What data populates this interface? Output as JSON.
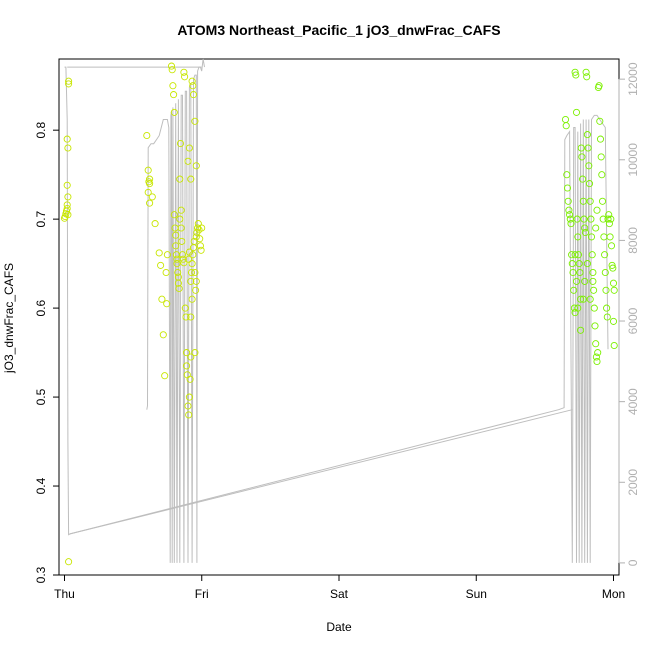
{
  "chart_data": {
    "type": "scatter",
    "title": "ATOM3 Northeast_Pacific_1 jO3_dnwFrac_CAFS",
    "xlabel": "Date",
    "ylabel": "jO3_dnwFrac_CAFS",
    "x_tick_labels": [
      "Thu",
      "Fri",
      "Sat",
      "Sun",
      "Mon"
    ],
    "x_tick_values": [
      0,
      1,
      2,
      3,
      4
    ],
    "xlim": [
      -0.04,
      4.04
    ],
    "ylim": [
      0.3,
      0.88
    ],
    "y_ticks": [
      0.3,
      0.4,
      0.5,
      0.6,
      0.7,
      0.8
    ],
    "y_tick_labels": [
      "0.3",
      "0.4",
      "0.5",
      "0.6",
      "0.7",
      "0.8"
    ],
    "y2lim": [
      -300,
      12500
    ],
    "y2_ticks": [
      0,
      2000,
      4000,
      6000,
      8000,
      10000,
      12000
    ],
    "y2_tick_labels": [
      "0",
      "2000",
      "4000",
      "6000",
      "8000",
      "10000",
      "12000"
    ],
    "colors": {
      "early": "#c8e600",
      "late": "#7cf000",
      "altitude_line": "#bebebe",
      "axis": "#000000",
      "right_axis": "#b0b0b0"
    },
    "series": [
      {
        "role": "points",
        "points": [
          [
            0.0,
            0.701
          ],
          [
            0.005,
            0.703
          ],
          [
            0.01,
            0.706
          ],
          [
            0.015,
            0.709
          ],
          [
            0.02,
            0.712
          ],
          [
            0.025,
            0.705
          ],
          [
            0.02,
            0.716
          ],
          [
            0.025,
            0.725
          ],
          [
            0.02,
            0.738
          ],
          [
            0.025,
            0.78
          ],
          [
            0.02,
            0.79
          ],
          [
            0.03,
            0.852
          ],
          [
            0.03,
            0.855
          ],
          [
            0.03,
            0.315
          ],
          [
            0.6,
            0.794
          ],
          [
            0.61,
            0.755
          ],
          [
            0.615,
            0.742
          ],
          [
            0.62,
            0.745
          ],
          [
            0.62,
            0.74
          ],
          [
            0.61,
            0.73
          ],
          [
            0.62,
            0.718
          ],
          [
            0.64,
            0.725
          ],
          [
            0.66,
            0.695
          ],
          [
            0.69,
            0.662
          ],
          [
            0.7,
            0.648
          ],
          [
            0.71,
            0.61
          ],
          [
            0.72,
            0.57
          ],
          [
            0.73,
            0.524
          ],
          [
            0.74,
            0.64
          ],
          [
            0.745,
            0.605
          ],
          [
            0.75,
            0.66
          ],
          [
            0.78,
            0.872
          ],
          [
            0.785,
            0.868
          ],
          [
            0.79,
            0.85
          ],
          [
            0.795,
            0.84
          ],
          [
            0.8,
            0.82
          ],
          [
            0.8,
            0.705
          ],
          [
            0.805,
            0.69
          ],
          [
            0.81,
            0.682
          ],
          [
            0.81,
            0.67
          ],
          [
            0.815,
            0.66
          ],
          [
            0.82,
            0.655
          ],
          [
            0.82,
            0.65
          ],
          [
            0.825,
            0.64
          ],
          [
            0.83,
            0.635
          ],
          [
            0.83,
            0.628
          ],
          [
            0.835,
            0.622
          ],
          [
            0.84,
            0.7
          ],
          [
            0.84,
            0.745
          ],
          [
            0.845,
            0.785
          ],
          [
            0.85,
            0.71
          ],
          [
            0.85,
            0.69
          ],
          [
            0.855,
            0.675
          ],
          [
            0.86,
            0.66
          ],
          [
            0.865,
            0.655
          ],
          [
            0.87,
            0.651
          ],
          [
            0.87,
            0.865
          ],
          [
            0.875,
            0.86
          ],
          [
            0.88,
            0.6
          ],
          [
            0.885,
            0.59
          ],
          [
            0.89,
            0.55
          ],
          [
            0.89,
            0.535
          ],
          [
            0.895,
            0.525
          ],
          [
            0.9,
            0.49
          ],
          [
            0.905,
            0.48
          ],
          [
            0.91,
            0.5
          ],
          [
            0.915,
            0.52
          ],
          [
            0.92,
            0.545
          ],
          [
            0.92,
            0.63
          ],
          [
            0.925,
            0.64
          ],
          [
            0.93,
            0.65
          ],
          [
            0.935,
            0.66
          ],
          [
            0.94,
            0.668
          ],
          [
            0.945,
            0.675
          ],
          [
            0.95,
            0.64
          ],
          [
            0.955,
            0.62
          ],
          [
            0.96,
            0.68
          ],
          [
            0.965,
            0.685
          ],
          [
            0.97,
            0.69
          ],
          [
            0.975,
            0.695
          ],
          [
            0.98,
            0.688
          ],
          [
            0.985,
            0.678
          ],
          [
            0.99,
            0.67
          ],
          [
            0.995,
            0.665
          ],
          [
            1.0,
            0.69
          ],
          [
            0.9,
            0.765
          ],
          [
            0.91,
            0.78
          ],
          [
            0.92,
            0.745
          ],
          [
            0.93,
            0.855
          ],
          [
            0.935,
            0.85
          ],
          [
            0.94,
            0.84
          ],
          [
            0.95,
            0.81
          ],
          [
            0.96,
            0.76
          ],
          [
            0.97,
            0.69
          ],
          [
            0.92,
            0.59
          ],
          [
            0.93,
            0.61
          ],
          [
            0.95,
            0.55
          ],
          [
            0.96,
            0.63
          ],
          [
            0.91,
            0.663
          ],
          [
            0.905,
            0.655
          ],
          [
            3.65,
            0.812
          ],
          [
            3.655,
            0.805
          ],
          [
            3.66,
            0.75
          ],
          [
            3.665,
            0.735
          ],
          [
            3.67,
            0.72
          ],
          [
            3.675,
            0.71
          ],
          [
            3.68,
            0.705
          ],
          [
            3.685,
            0.7
          ],
          [
            3.69,
            0.695
          ],
          [
            3.695,
            0.66
          ],
          [
            3.7,
            0.65
          ],
          [
            3.705,
            0.64
          ],
          [
            3.71,
            0.62
          ],
          [
            3.715,
            0.6
          ],
          [
            3.72,
            0.595
          ],
          [
            3.72,
            0.865
          ],
          [
            3.725,
            0.862
          ],
          [
            3.73,
            0.82
          ],
          [
            3.735,
            0.7
          ],
          [
            3.74,
            0.68
          ],
          [
            3.745,
            0.66
          ],
          [
            3.75,
            0.65
          ],
          [
            3.755,
            0.64
          ],
          [
            3.76,
            0.61
          ],
          [
            3.765,
            0.78
          ],
          [
            3.77,
            0.77
          ],
          [
            3.775,
            0.745
          ],
          [
            3.78,
            0.72
          ],
          [
            3.785,
            0.7
          ],
          [
            3.79,
            0.69
          ],
          [
            3.795,
            0.685
          ],
          [
            3.8,
            0.865
          ],
          [
            3.805,
            0.86
          ],
          [
            3.81,
            0.795
          ],
          [
            3.815,
            0.78
          ],
          [
            3.82,
            0.76
          ],
          [
            3.825,
            0.74
          ],
          [
            3.83,
            0.72
          ],
          [
            3.835,
            0.7
          ],
          [
            3.84,
            0.68
          ],
          [
            3.845,
            0.66
          ],
          [
            3.85,
            0.64
          ],
          [
            3.855,
            0.62
          ],
          [
            3.86,
            0.6
          ],
          [
            3.865,
            0.58
          ],
          [
            3.87,
            0.56
          ],
          [
            3.875,
            0.545
          ],
          [
            3.88,
            0.54
          ],
          [
            3.885,
            0.55
          ],
          [
            3.89,
            0.848
          ],
          [
            3.895,
            0.85
          ],
          [
            3.9,
            0.81
          ],
          [
            3.905,
            0.79
          ],
          [
            3.91,
            0.77
          ],
          [
            3.915,
            0.75
          ],
          [
            3.92,
            0.72
          ],
          [
            3.925,
            0.7
          ],
          [
            3.93,
            0.68
          ],
          [
            3.935,
            0.66
          ],
          [
            3.94,
            0.64
          ],
          [
            3.945,
            0.62
          ],
          [
            3.95,
            0.6
          ],
          [
            3.955,
            0.59
          ],
          [
            3.96,
            0.7
          ],
          [
            3.965,
            0.705
          ],
          [
            3.97,
            0.695
          ],
          [
            3.975,
            0.68
          ],
          [
            3.98,
            0.7
          ],
          [
            3.985,
            0.67
          ],
          [
            3.99,
            0.648
          ],
          [
            3.995,
            0.645
          ],
          [
            4.0,
            0.628
          ],
          [
            4.005,
            0.62
          ],
          [
            4.0,
            0.585
          ],
          [
            4.005,
            0.558
          ],
          [
            3.72,
            0.66
          ],
          [
            3.73,
            0.63
          ],
          [
            3.74,
            0.6
          ],
          [
            3.76,
            0.575
          ],
          [
            3.78,
            0.61
          ],
          [
            3.79,
            0.63
          ],
          [
            3.81,
            0.65
          ],
          [
            3.83,
            0.61
          ],
          [
            3.85,
            0.63
          ],
          [
            3.87,
            0.69
          ],
          [
            3.88,
            0.71
          ]
        ]
      },
      {
        "role": "altitude_line",
        "points": [
          [
            0.0,
            12300
          ],
          [
            0.01,
            12300
          ],
          [
            0.02,
            11000
          ],
          [
            0.025,
            3000
          ],
          [
            0.03,
            700
          ],
          [
            0.04,
            720
          ],
          [
            3.6,
            3800
          ],
          [
            3.64,
            3850
          ],
          [
            3.645,
            10500
          ],
          [
            3.66,
            10600
          ],
          [
            3.68,
            10700
          ],
          [
            3.7,
            0
          ],
          [
            3.71,
            10800
          ],
          [
            3.72,
            10800
          ],
          [
            3.73,
            0
          ],
          [
            3.74,
            10700
          ],
          [
            3.75,
            0
          ],
          [
            3.76,
            10900
          ],
          [
            3.77,
            0
          ],
          [
            3.78,
            11000
          ],
          [
            3.79,
            0
          ],
          [
            3.8,
            11000
          ],
          [
            3.81,
            0
          ],
          [
            3.82,
            11000
          ],
          [
            3.83,
            0
          ],
          [
            3.84,
            11000
          ],
          [
            3.86,
            11100
          ],
          [
            3.88,
            11100
          ],
          [
            3.9,
            11000
          ],
          [
            3.92,
            10900
          ],
          [
            3.94,
            10800
          ],
          [
            3.96,
            5300
          ]
        ],
        "segment2": [
          [
            0.6,
            3800
          ],
          [
            0.605,
            3900
          ],
          [
            0.61,
            10300
          ],
          [
            0.63,
            10400
          ],
          [
            0.65,
            10400
          ],
          [
            0.67,
            10500
          ],
          [
            0.69,
            10600
          ],
          [
            0.72,
            11000
          ],
          [
            0.75,
            11000
          ],
          [
            0.76,
            10800
          ],
          [
            0.77,
            0
          ],
          [
            0.775,
            11100
          ],
          [
            0.78,
            11200
          ],
          [
            0.785,
            0
          ],
          [
            0.79,
            11300
          ],
          [
            0.8,
            0
          ],
          [
            0.81,
            11400
          ],
          [
            0.82,
            0
          ],
          [
            0.83,
            11500
          ],
          [
            0.84,
            0
          ],
          [
            0.85,
            11600
          ],
          [
            0.86,
            11600
          ],
          [
            0.87,
            0
          ],
          [
            0.88,
            11700
          ],
          [
            0.89,
            11700
          ],
          [
            0.9,
            0
          ],
          [
            0.91,
            11800
          ],
          [
            0.92,
            11900
          ],
          [
            0.93,
            0
          ],
          [
            0.94,
            12000
          ],
          [
            0.95,
            12100
          ],
          [
            0.96,
            12100
          ],
          [
            0.965,
            0
          ],
          [
            0.97,
            12200
          ],
          [
            0.98,
            12300
          ],
          [
            0.99,
            12300
          ],
          [
            1.0,
            12200
          ],
          [
            1.01,
            12500
          ],
          [
            1.02,
            12300
          ]
        ],
        "segment_top": [
          [
            0.02,
            12300
          ],
          [
            1.0,
            12300
          ]
        ],
        "segment_bottom": [
          [
            0.04,
            720
          ],
          [
            3.7,
            3800
          ]
        ]
      }
    ]
  }
}
